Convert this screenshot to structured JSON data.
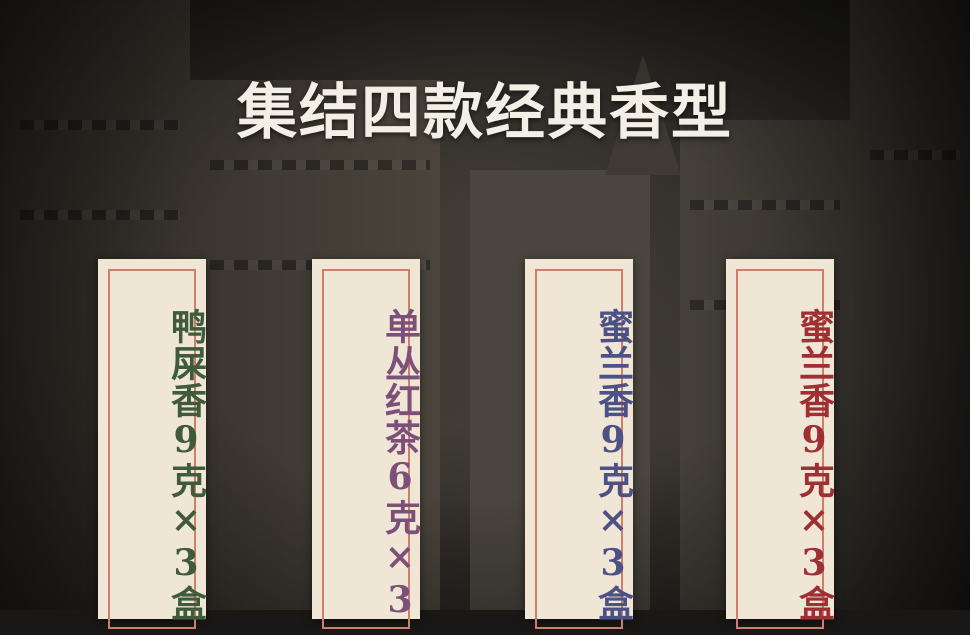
{
  "title": "集结四款经典香型",
  "cards": [
    {
      "text": "鸭屎香9克×3盒",
      "color": "#3f5b3a"
    },
    {
      "text": "单丛红茶6克×3",
      "color": "#7c5079"
    },
    {
      "text": "蜜兰香9克×3盒",
      "color": "#4c5285"
    },
    {
      "text": "蜜兰香9克×3盒",
      "color": "#9e2f33"
    }
  ]
}
